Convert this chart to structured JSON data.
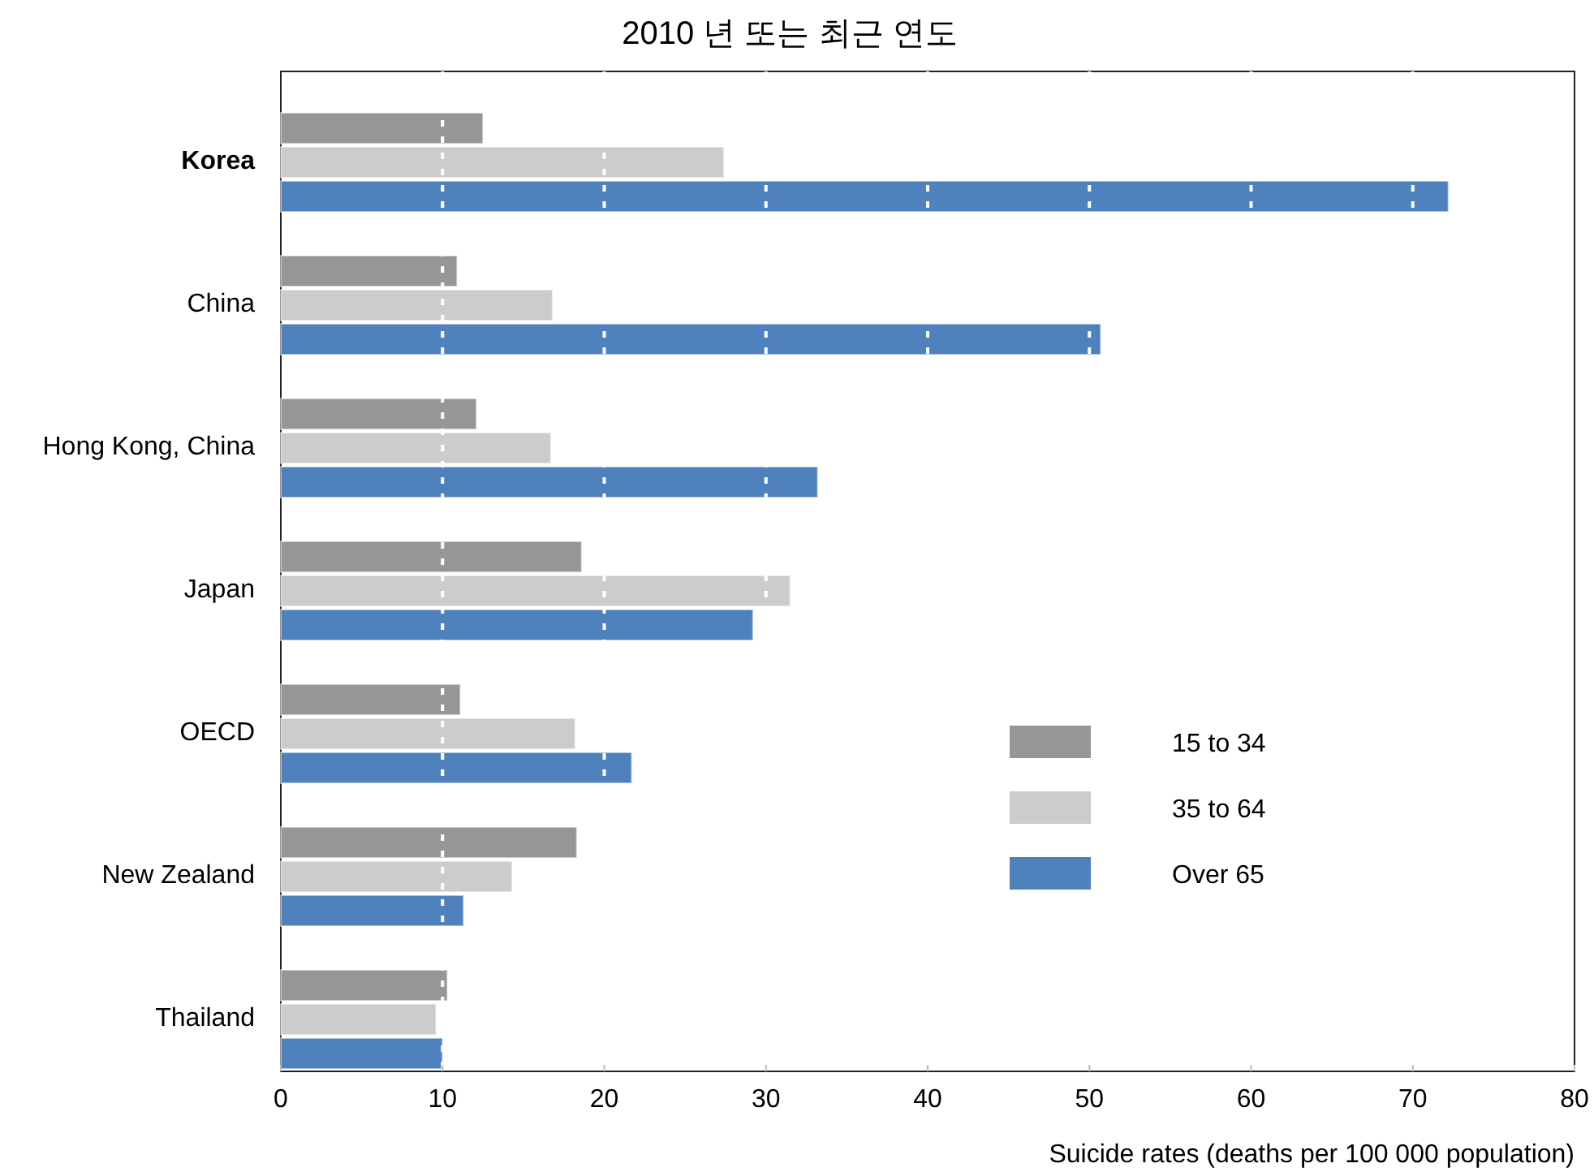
{
  "chart_data": {
    "type": "bar",
    "orientation": "horizontal",
    "title": "2010 년  또는 최근 연도",
    "xlabel": "Suicide rates (deaths per 100 000 population)",
    "categories": [
      "**Korea**",
      "China",
      "Hong Kong, China",
      "Japan",
      "OECD",
      "New Zealand",
      "Thailand"
    ],
    "series": [
      {
        "name": "15 to 34",
        "color": "#969696",
        "values": [
          12.5,
          10.9,
          12.1,
          18.6,
          11.1,
          18.3,
          10.3
        ]
      },
      {
        "name": "35 to 64",
        "color": "#cccccc",
        "values": [
          27.4,
          16.8,
          16.7,
          31.5,
          18.2,
          14.3,
          9.6
        ]
      },
      {
        "name": "Over 65",
        "color": "#4f81bd",
        "values": [
          72.2,
          50.7,
          33.2,
          29.2,
          21.7,
          11.3,
          10.0
        ]
      }
    ],
    "xlim": [
      0,
      80
    ],
    "xticks": [
      0,
      10,
      20,
      30,
      40,
      50,
      60,
      70,
      80
    ],
    "grid": "x",
    "legend": "bottom right"
  }
}
